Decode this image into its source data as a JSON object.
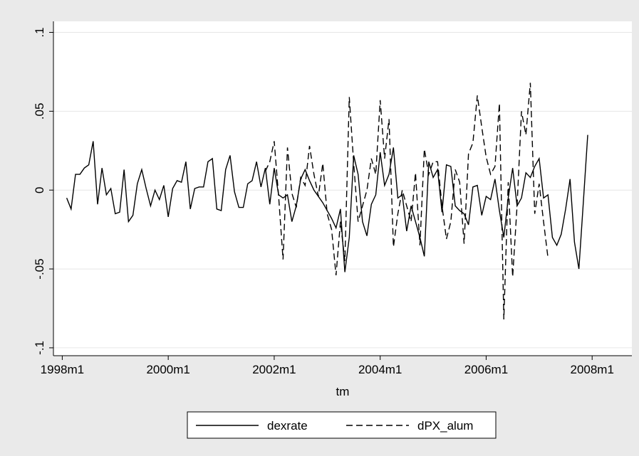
{
  "chart_data": {
    "type": "line",
    "x_label": "tm",
    "x": [
      457,
      458,
      459,
      460,
      461,
      462,
      463,
      464,
      465,
      466,
      467,
      468,
      469,
      470,
      471,
      472,
      473,
      474,
      475,
      476,
      477,
      478,
      479,
      480,
      481,
      482,
      483,
      484,
      485,
      486,
      487,
      488,
      489,
      490,
      491,
      492,
      493,
      494,
      495,
      496,
      497,
      498,
      499,
      500,
      501,
      502,
      503,
      504,
      505,
      506,
      507,
      508,
      509,
      510,
      511,
      512,
      513,
      514,
      515,
      516,
      517,
      518,
      519,
      520,
      521,
      522,
      523,
      524,
      525,
      526,
      527,
      528,
      529,
      530,
      531,
      532,
      533,
      534,
      535,
      536,
      537,
      538,
      539,
      540,
      541,
      542,
      543,
      544,
      545,
      546,
      547,
      548,
      549,
      550,
      551,
      552,
      553,
      554,
      555,
      556,
      557,
      558,
      559,
      560,
      561,
      562,
      563,
      564,
      565,
      566,
      567,
      568,
      569,
      570,
      571,
      572,
      573,
      574,
      575
    ],
    "series": [
      {
        "name": "dexrate",
        "color": "#000000",
        "dash": "solid",
        "values": [
          -0.005,
          -0.012,
          0.01,
          0.01,
          0.014,
          0.016,
          0.031,
          -0.009,
          0.014,
          -0.003,
          0.001,
          -0.015,
          -0.014,
          0.013,
          -0.02,
          -0.016,
          0.004,
          0.013,
          0.001,
          -0.01,
          0.0,
          -0.006,
          0.003,
          -0.017,
          0.001,
          0.006,
          0.005,
          0.018,
          -0.012,
          0.001,
          0.002,
          0.002,
          0.018,
          0.02,
          -0.012,
          -0.013,
          0.013,
          0.022,
          -0.001,
          -0.011,
          -0.011,
          0.004,
          0.006,
          0.018,
          0.002,
          0.014,
          -0.009,
          0.014,
          -0.003,
          -0.005,
          -0.003,
          -0.02,
          -0.01,
          0.007,
          0.013,
          0.006,
          0.0,
          -0.004,
          -0.008,
          -0.013,
          -0.018,
          -0.024,
          -0.012,
          -0.052,
          -0.03,
          0.022,
          0.01,
          -0.02,
          -0.029,
          -0.009,
          -0.003,
          0.024,
          0.003,
          0.01,
          0.027,
          -0.005,
          -0.003,
          -0.026,
          -0.01,
          -0.02,
          -0.03,
          -0.042,
          0.018,
          0.008,
          0.013,
          -0.014,
          0.016,
          0.015,
          -0.01,
          -0.013,
          -0.015,
          -0.022,
          0.002,
          0.003,
          -0.016,
          -0.004,
          -0.006,
          0.007,
          -0.013,
          -0.03,
          -0.005,
          0.014,
          -0.01,
          -0.005,
          0.011,
          0.008,
          0.015,
          0.02,
          -0.005,
          -0.003,
          -0.03,
          -0.035,
          -0.028,
          -0.012,
          0.007,
          -0.033,
          -0.05,
          -0.008,
          0.035
        ]
      },
      {
        "name": "dPX_alum",
        "color": "#000000",
        "dash": "dashed",
        "values": [
          null,
          null,
          null,
          null,
          null,
          null,
          null,
          null,
          null,
          null,
          null,
          null,
          null,
          null,
          null,
          null,
          null,
          null,
          null,
          null,
          null,
          null,
          null,
          null,
          null,
          null,
          null,
          null,
          null,
          null,
          null,
          null,
          null,
          null,
          null,
          null,
          null,
          null,
          null,
          null,
          null,
          null,
          null,
          null,
          null,
          0.012,
          0.018,
          0.031,
          -0.004,
          -0.044,
          0.027,
          -0.002,
          -0.011,
          0.008,
          0.003,
          0.028,
          0.01,
          -0.004,
          0.017,
          -0.015,
          -0.025,
          -0.054,
          -0.02,
          -0.045,
          0.059,
          0.017,
          -0.02,
          -0.01,
          0.0,
          0.02,
          0.01,
          0.057,
          0.02,
          0.045,
          -0.036,
          -0.015,
          0.0,
          -0.01,
          -0.02,
          0.011,
          -0.035,
          0.026,
          0.01,
          0.018,
          0.018,
          -0.01,
          -0.031,
          -0.02,
          0.013,
          0.005,
          -0.034,
          0.023,
          0.03,
          0.06,
          0.04,
          0.021,
          0.01,
          0.015,
          0.055,
          -0.082,
          0.005,
          -0.055,
          -0.01,
          0.05,
          0.035,
          0.068,
          -0.015,
          0.004,
          -0.02,
          -0.043,
          null,
          null,
          null,
          null,
          null,
          null,
          null,
          null,
          null
        ]
      }
    ],
    "xlim": [
      454,
      585
    ],
    "xticks": [
      {
        "value": 456,
        "label": "1998m1"
      },
      {
        "value": 480,
        "label": "2000m1"
      },
      {
        "value": 504,
        "label": "2002m1"
      },
      {
        "value": 528,
        "label": "2004m1"
      },
      {
        "value": 552,
        "label": "2006m1"
      },
      {
        "value": 576,
        "label": "2008m1"
      }
    ],
    "ylim": [
      -0.105,
      0.107
    ],
    "yticks": [
      {
        "value": -0.1,
        "label": "-.1"
      },
      {
        "value": -0.05,
        "label": "-.05"
      },
      0,
      {
        "value": 0.05,
        "label": ".05"
      },
      {
        "value": 0.1,
        "label": ".1"
      }
    ],
    "grid": true
  }
}
